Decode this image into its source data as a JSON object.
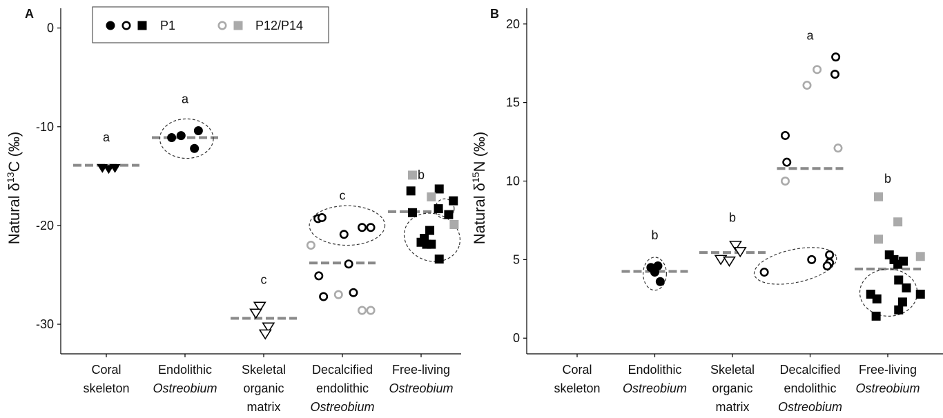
{
  "figure": {
    "legend": {
      "entries": [
        {
          "label": "P1",
          "color": "#000000",
          "symbols": [
            "filled-circle",
            "open-circle",
            "filled-square"
          ]
        },
        {
          "label": "P12/P14",
          "color": "#aaaaaa",
          "symbols": [
            "open-circle",
            "filled-square"
          ]
        }
      ],
      "placement": "top-left of panel A"
    },
    "colors": {
      "p1": "#000000",
      "p12_p14": "#aaaaaa",
      "mean_line": "#8a8a8a",
      "ellipse": "#333333"
    }
  },
  "chart_data": [
    {
      "type": "scatter",
      "panel_label": "A",
      "ylabel_prefix": "Natural δ",
      "ylabel_isotope": "13",
      "ylabel_element": "C",
      "ylabel_unit": " (‰)",
      "ylim": [
        -33,
        2
      ],
      "yticks": [
        0,
        -10,
        -20,
        -30
      ],
      "ytick_labels": [
        "0",
        "-10",
        "-20",
        "-30"
      ],
      "categories": [
        {
          "lines": [
            "Coral",
            "skeleton"
          ],
          "italic": [
            false,
            false
          ]
        },
        {
          "lines": [
            "Endolithic",
            "Ostreobium"
          ],
          "italic": [
            false,
            true
          ]
        },
        {
          "lines": [
            "Skeletal",
            "organic",
            "matrix"
          ],
          "italic": [
            false,
            false,
            false
          ]
        },
        {
          "lines": [
            "Decalcified",
            "endolithic",
            "Ostreobium"
          ],
          "italic": [
            false,
            false,
            true
          ]
        },
        {
          "lines": [
            "Free-living",
            "Ostreobium"
          ],
          "italic": [
            false,
            true
          ]
        }
      ],
      "means": [
        -13.9,
        -11.1,
        -29.4,
        -23.8,
        -18.6
      ],
      "significance_letters": [
        {
          "category": 0,
          "letter": "a",
          "y": -11.5
        },
        {
          "category": 1,
          "letter": "a",
          "y": -7.6
        },
        {
          "category": 2,
          "letter": "c",
          "y": -25.9
        },
        {
          "category": 3,
          "letter": "c",
          "y": -17.4
        },
        {
          "category": 4,
          "letter": "b",
          "y": -15.3
        }
      ],
      "points": [
        {
          "category": 0,
          "dx": -0.05,
          "y": -14.2,
          "shape": "filled-triangle-down",
          "color": "#000000"
        },
        {
          "category": 0,
          "dx": 0.03,
          "y": -14.3,
          "shape": "filled-triangle-down",
          "color": "#000000"
        },
        {
          "category": 0,
          "dx": 0.11,
          "y": -14.2,
          "shape": "filled-triangle-down",
          "color": "#000000"
        },
        {
          "category": 1,
          "dx": -0.17,
          "y": -11.1,
          "shape": "filled-circle",
          "color": "#000000"
        },
        {
          "category": 1,
          "dx": -0.05,
          "y": -10.9,
          "shape": "filled-circle",
          "color": "#000000"
        },
        {
          "category": 1,
          "dx": 0.17,
          "y": -10.4,
          "shape": "filled-circle",
          "color": "#000000"
        },
        {
          "category": 1,
          "dx": 0.12,
          "y": -12.2,
          "shape": "filled-circle",
          "color": "#000000"
        },
        {
          "category": 2,
          "dx": -0.05,
          "y": -28.2,
          "shape": "open-triangle-down",
          "color": "#000000"
        },
        {
          "category": 2,
          "dx": -0.1,
          "y": -28.9,
          "shape": "open-triangle-down",
          "color": "#000000"
        },
        {
          "category": 2,
          "dx": 0.06,
          "y": -30.3,
          "shape": "open-triangle-down",
          "color": "#000000"
        },
        {
          "category": 2,
          "dx": 0.02,
          "y": -31.0,
          "shape": "open-triangle-down",
          "color": "#000000"
        },
        {
          "category": 3,
          "dx": -0.31,
          "y": -19.3,
          "shape": "open-circle",
          "color": "#000000"
        },
        {
          "category": 3,
          "dx": -0.26,
          "y": -19.2,
          "shape": "open-circle",
          "color": "#000000"
        },
        {
          "category": 3,
          "dx": 0.02,
          "y": -20.9,
          "shape": "open-circle",
          "color": "#000000"
        },
        {
          "category": 3,
          "dx": 0.25,
          "y": -20.2,
          "shape": "open-circle",
          "color": "#000000"
        },
        {
          "category": 3,
          "dx": 0.36,
          "y": -20.2,
          "shape": "open-circle",
          "color": "#000000"
        },
        {
          "category": 3,
          "dx": -0.4,
          "y": -22.0,
          "shape": "open-circle",
          "color": "#aaaaaa"
        },
        {
          "category": 3,
          "dx": -0.3,
          "y": -25.1,
          "shape": "open-circle",
          "color": "#000000"
        },
        {
          "category": 3,
          "dx": 0.08,
          "y": -23.9,
          "shape": "open-circle",
          "color": "#000000"
        },
        {
          "category": 3,
          "dx": -0.24,
          "y": -27.2,
          "shape": "open-circle",
          "color": "#000000"
        },
        {
          "category": 3,
          "dx": -0.05,
          "y": -27.0,
          "shape": "open-circle",
          "color": "#aaaaaa"
        },
        {
          "category": 3,
          "dx": 0.14,
          "y": -26.8,
          "shape": "open-circle",
          "color": "#000000"
        },
        {
          "category": 3,
          "dx": 0.25,
          "y": -28.6,
          "shape": "open-circle",
          "color": "#aaaaaa"
        },
        {
          "category": 3,
          "dx": 0.36,
          "y": -28.6,
          "shape": "open-circle",
          "color": "#aaaaaa"
        },
        {
          "category": 4,
          "dx": -0.11,
          "y": -14.9,
          "shape": "filled-square",
          "color": "#aaaaaa"
        },
        {
          "category": 4,
          "dx": -0.13,
          "y": -16.5,
          "shape": "filled-square",
          "color": "#000000"
        },
        {
          "category": 4,
          "dx": 0.23,
          "y": -16.3,
          "shape": "filled-square",
          "color": "#000000"
        },
        {
          "category": 4,
          "dx": 0.13,
          "y": -17.1,
          "shape": "filled-square",
          "color": "#aaaaaa"
        },
        {
          "category": 4,
          "dx": 0.41,
          "y": -17.5,
          "shape": "filled-square",
          "color": "#000000"
        },
        {
          "category": 4,
          "dx": 0.22,
          "y": -18.3,
          "shape": "filled-square",
          "color": "#000000"
        },
        {
          "category": 4,
          "dx": -0.11,
          "y": -18.7,
          "shape": "filled-square",
          "color": "#000000"
        },
        {
          "category": 4,
          "dx": 0.35,
          "y": -18.9,
          "shape": "filled-square",
          "color": "#000000"
        },
        {
          "category": 4,
          "dx": 0.42,
          "y": -19.9,
          "shape": "filled-square",
          "color": "#aaaaaa"
        },
        {
          "category": 4,
          "dx": 0.11,
          "y": -20.5,
          "shape": "filled-square",
          "color": "#000000"
        },
        {
          "category": 4,
          "dx": 0.04,
          "y": -21.3,
          "shape": "filled-square",
          "color": "#000000"
        },
        {
          "category": 4,
          "dx": 0.0,
          "y": -21.7,
          "shape": "filled-square",
          "color": "#000000"
        },
        {
          "category": 4,
          "dx": 0.07,
          "y": -21.9,
          "shape": "filled-square",
          "color": "#000000"
        },
        {
          "category": 4,
          "dx": 0.13,
          "y": -21.9,
          "shape": "filled-square",
          "color": "#000000"
        },
        {
          "category": 4,
          "dx": 0.23,
          "y": -23.4,
          "shape": "filled-square",
          "color": "#000000"
        }
      ],
      "ellipses": [
        {
          "category": 1,
          "dx": 0.02,
          "y": -11.2,
          "rx_cat": 0.34,
          "ry": 2.0,
          "rotate": 0
        },
        {
          "category": 3,
          "dx": 0.06,
          "y": -20.0,
          "rx_cat": 0.48,
          "ry": 2.0,
          "rotate": 0
        },
        {
          "category": 4,
          "dx": 0.14,
          "y": -21.2,
          "rx_cat": 0.36,
          "ry": 2.4,
          "rotate": 18
        },
        {
          "category": 4,
          "dx": 0.3,
          "y": -18.3,
          "rx_cat": 0.12,
          "ry": 1.0,
          "rotate": 0
        }
      ]
    },
    {
      "type": "scatter",
      "panel_label": "B",
      "ylabel_prefix": "Natural δ",
      "ylabel_isotope": "15",
      "ylabel_element": "N",
      "ylabel_unit": " (‰)",
      "ylim": [
        -1,
        21
      ],
      "yticks": [
        0,
        5,
        10,
        15,
        20
      ],
      "ytick_labels": [
        "0",
        "5",
        "10",
        "15",
        "20"
      ],
      "categories": [
        {
          "lines": [
            "Coral",
            "skeleton"
          ],
          "italic": [
            false,
            false
          ]
        },
        {
          "lines": [
            "Endolithic",
            "Ostreobium"
          ],
          "italic": [
            false,
            true
          ]
        },
        {
          "lines": [
            "Skeletal",
            "organic",
            "matrix"
          ],
          "italic": [
            false,
            false,
            false
          ]
        },
        {
          "lines": [
            "Decalcified",
            "endolithic",
            "Ostreobium"
          ],
          "italic": [
            false,
            false,
            true
          ]
        },
        {
          "lines": [
            "Free-living",
            "Ostreobium"
          ],
          "italic": [
            false,
            true
          ]
        }
      ],
      "means": [
        null,
        4.25,
        5.45,
        10.8,
        4.4
      ],
      "significance_letters": [
        {
          "category": 1,
          "letter": "b",
          "y": 6.3
        },
        {
          "category": 2,
          "letter": "b",
          "y": 7.4
        },
        {
          "category": 3,
          "letter": "a",
          "y": 19.0
        },
        {
          "category": 4,
          "letter": "b",
          "y": 9.9
        }
      ],
      "points": [
        {
          "category": 1,
          "dx": -0.05,
          "y": 4.5,
          "shape": "filled-circle",
          "color": "#000000"
        },
        {
          "category": 1,
          "dx": 0.04,
          "y": 4.6,
          "shape": "filled-circle",
          "color": "#000000"
        },
        {
          "category": 1,
          "dx": 0.0,
          "y": 4.2,
          "shape": "filled-circle",
          "color": "#000000"
        },
        {
          "category": 1,
          "dx": 0.07,
          "y": 3.6,
          "shape": "filled-circle",
          "color": "#000000"
        },
        {
          "category": 2,
          "dx": -0.15,
          "y": 5.0,
          "shape": "open-triangle-down",
          "color": "#000000"
        },
        {
          "category": 2,
          "dx": -0.04,
          "y": 4.9,
          "shape": "open-triangle-down",
          "color": "#000000"
        },
        {
          "category": 2,
          "dx": 0.04,
          "y": 5.9,
          "shape": "open-triangle-down",
          "color": "#000000"
        },
        {
          "category": 2,
          "dx": 0.1,
          "y": 5.5,
          "shape": "open-triangle-down",
          "color": "#000000"
        },
        {
          "category": 3,
          "dx": 0.33,
          "y": 17.9,
          "shape": "open-circle",
          "color": "#000000"
        },
        {
          "category": 3,
          "dx": 0.09,
          "y": 17.1,
          "shape": "open-circle",
          "color": "#aaaaaa"
        },
        {
          "category": 3,
          "dx": 0.32,
          "y": 16.8,
          "shape": "open-circle",
          "color": "#000000"
        },
        {
          "category": 3,
          "dx": -0.04,
          "y": 16.1,
          "shape": "open-circle",
          "color": "#aaaaaa"
        },
        {
          "category": 3,
          "dx": -0.32,
          "y": 12.9,
          "shape": "open-circle",
          "color": "#000000"
        },
        {
          "category": 3,
          "dx": 0.36,
          "y": 12.1,
          "shape": "open-circle",
          "color": "#aaaaaa"
        },
        {
          "category": 3,
          "dx": -0.3,
          "y": 11.2,
          "shape": "open-circle",
          "color": "#000000"
        },
        {
          "category": 3,
          "dx": -0.32,
          "y": 10.0,
          "shape": "open-circle",
          "color": "#aaaaaa"
        },
        {
          "category": 3,
          "dx": 0.25,
          "y": 5.3,
          "shape": "open-circle",
          "color": "#000000"
        },
        {
          "category": 3,
          "dx": 0.02,
          "y": 5.0,
          "shape": "open-circle",
          "color": "#000000"
        },
        {
          "category": 3,
          "dx": 0.25,
          "y": 4.8,
          "shape": "open-circle",
          "color": "#000000"
        },
        {
          "category": 3,
          "dx": 0.22,
          "y": 4.6,
          "shape": "open-circle",
          "color": "#000000"
        },
        {
          "category": 3,
          "dx": -0.59,
          "y": 4.2,
          "shape": "open-circle",
          "color": "#000000"
        },
        {
          "category": 4,
          "dx": -0.12,
          "y": 9.0,
          "shape": "filled-square",
          "color": "#aaaaaa"
        },
        {
          "category": 4,
          "dx": 0.13,
          "y": 7.4,
          "shape": "filled-square",
          "color": "#aaaaaa"
        },
        {
          "category": 4,
          "dx": -0.12,
          "y": 6.3,
          "shape": "filled-square",
          "color": "#aaaaaa"
        },
        {
          "category": 4,
          "dx": 0.02,
          "y": 5.3,
          "shape": "filled-square",
          "color": "#000000"
        },
        {
          "category": 4,
          "dx": 0.08,
          "y": 5.0,
          "shape": "filled-square",
          "color": "#000000"
        },
        {
          "category": 4,
          "dx": 0.2,
          "y": 4.9,
          "shape": "filled-square",
          "color": "#000000"
        },
        {
          "category": 4,
          "dx": 0.13,
          "y": 4.7,
          "shape": "filled-square",
          "color": "#000000"
        },
        {
          "category": 4,
          "dx": 0.42,
          "y": 5.2,
          "shape": "filled-square",
          "color": "#aaaaaa"
        },
        {
          "category": 4,
          "dx": 0.14,
          "y": 3.7,
          "shape": "filled-square",
          "color": "#000000"
        },
        {
          "category": 4,
          "dx": 0.24,
          "y": 3.2,
          "shape": "filled-square",
          "color": "#000000"
        },
        {
          "category": 4,
          "dx": -0.22,
          "y": 2.8,
          "shape": "filled-square",
          "color": "#000000"
        },
        {
          "category": 4,
          "dx": 0.42,
          "y": 2.8,
          "shape": "filled-square",
          "color": "#000000"
        },
        {
          "category": 4,
          "dx": -0.14,
          "y": 2.5,
          "shape": "filled-square",
          "color": "#000000"
        },
        {
          "category": 4,
          "dx": 0.19,
          "y": 2.3,
          "shape": "filled-square",
          "color": "#000000"
        },
        {
          "category": 4,
          "dx": 0.14,
          "y": 1.8,
          "shape": "filled-square",
          "color": "#000000"
        },
        {
          "category": 4,
          "dx": -0.15,
          "y": 1.4,
          "shape": "filled-square",
          "color": "#000000"
        }
      ],
      "ellipses": [
        {
          "category": 1,
          "dx": 0.0,
          "y": 4.1,
          "rx_cat": 0.15,
          "ry": 1.05,
          "rotate": 0
        },
        {
          "category": 3,
          "dx": -0.19,
          "y": 4.6,
          "rx_cat": 0.54,
          "ry": 1.05,
          "rotate": -12
        },
        {
          "category": 4,
          "dx": 0.01,
          "y": 2.9,
          "rx_cat": 0.37,
          "ry": 1.5,
          "rotate": 0
        }
      ]
    }
  ]
}
